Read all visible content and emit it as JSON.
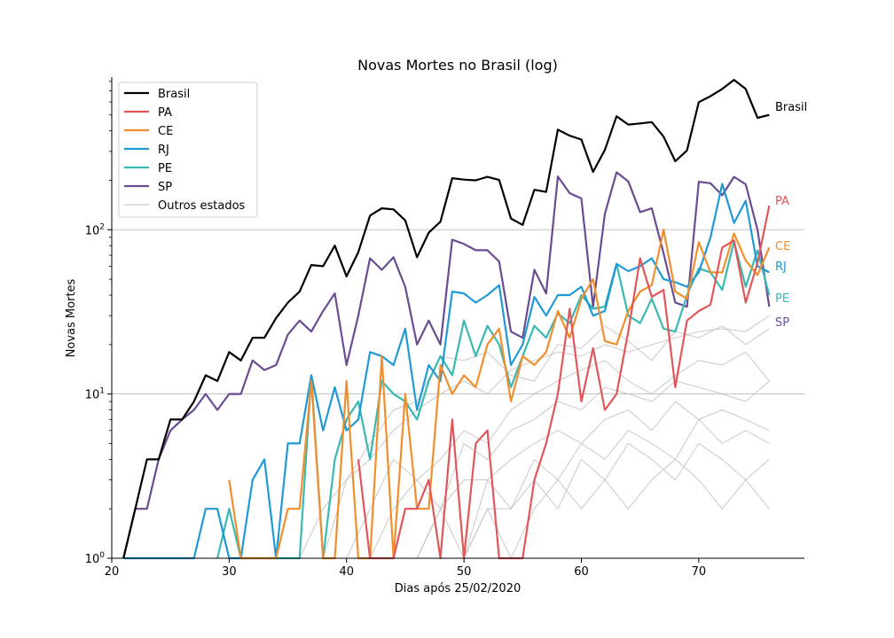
{
  "chart_data": {
    "type": "line",
    "title": "Novas Mortes no Brasil (log)",
    "xlabel": "Dias após 25/02/2020",
    "ylabel": "Novas Mortes",
    "yscale": "log",
    "xlim": [
      20,
      79
    ],
    "ylim": [
      1,
      850
    ],
    "xticks": [
      20,
      30,
      40,
      50,
      60,
      70
    ],
    "yticks": [
      1,
      10,
      100
    ],
    "ytick_labels": [
      "10^0",
      "10^1",
      "10^2"
    ],
    "grid": "horizontal at major y ticks",
    "legend_placement": "top-left",
    "legend": [
      "Brasil",
      "PA",
      "CE",
      "RJ",
      "PE",
      "SP",
      "Outros estados"
    ],
    "series": [
      {
        "name": "Brasil",
        "color": "#000000",
        "end_label": "Brasil",
        "x": [
          21,
          22,
          23,
          24,
          25,
          26,
          27,
          28,
          29,
          30,
          31,
          32,
          33,
          34,
          35,
          36,
          37,
          38,
          39,
          40,
          41,
          42,
          43,
          44,
          45,
          46,
          47,
          48,
          49,
          50,
          51,
          52,
          53,
          54,
          55,
          56,
          57,
          58,
          59,
          60,
          61,
          62,
          63,
          64,
          65,
          66,
          67,
          68,
          69,
          70,
          71,
          72,
          73,
          74,
          75,
          76
        ],
        "values": [
          1,
          2,
          4,
          4,
          7,
          7,
          9,
          13,
          12,
          18,
          16,
          22,
          22,
          29,
          36,
          42,
          61,
          60,
          80,
          52,
          73,
          122,
          135,
          133,
          114,
          68,
          96,
          112,
          206,
          202,
          200,
          210,
          201,
          117,
          107,
          175,
          170,
          407,
          374,
          354,
          225,
          306,
          491,
          437,
          444,
          452,
          369,
          261,
          304,
          598,
          651,
          720,
          818,
          720,
          480,
          500
        ]
      },
      {
        "name": "PA",
        "color": "#e15759",
        "end_label": "PA",
        "x": [
          41,
          42,
          43,
          44,
          45,
          46,
          47,
          48,
          49,
          50,
          51,
          52,
          53,
          54,
          55,
          56,
          57,
          58,
          59,
          60,
          61,
          62,
          63,
          64,
          65,
          66,
          67,
          68,
          69,
          70,
          71,
          72,
          73,
          74,
          75,
          76
        ],
        "values": [
          4,
          1,
          1,
          1,
          2,
          2,
          3,
          1,
          7,
          1,
          5,
          6,
          1,
          1,
          1,
          3,
          5,
          10,
          33,
          9,
          19,
          8,
          10,
          24,
          67,
          39,
          43,
          11,
          28,
          32,
          35,
          78,
          86,
          36,
          63,
          140
        ]
      },
      {
        "name": "CE",
        "color": "#f28e2b",
        "end_label": "CE",
        "x": [
          30,
          31,
          32,
          33,
          34,
          35,
          36,
          37,
          38,
          39,
          40,
          41,
          42,
          43,
          44,
          45,
          46,
          47,
          48,
          49,
          50,
          51,
          52,
          53,
          54,
          55,
          56,
          57,
          58,
          59,
          60,
          61,
          62,
          63,
          64,
          65,
          66,
          67,
          68,
          69,
          70,
          71,
          72,
          73,
          74,
          75,
          76
        ],
        "values": [
          3,
          1,
          1,
          1,
          1,
          2,
          2,
          12,
          1,
          1,
          12,
          1,
          1,
          17,
          1,
          10,
          2,
          2,
          15,
          10,
          13,
          11,
          20,
          25,
          9,
          17,
          15,
          18,
          32,
          22,
          38,
          50,
          21,
          20,
          32,
          42,
          46,
          100,
          42,
          38,
          84,
          55,
          55,
          95,
          65,
          53,
          78
        ]
      },
      {
        "name": "RJ",
        "color": "#1f9ad6",
        "end_label": "RJ",
        "x": [
          21,
          22,
          23,
          24,
          25,
          26,
          27,
          28,
          29,
          30,
          31,
          32,
          33,
          34,
          35,
          36,
          37,
          38,
          39,
          40,
          41,
          42,
          43,
          44,
          45,
          46,
          47,
          48,
          49,
          50,
          51,
          52,
          53,
          54,
          55,
          56,
          57,
          58,
          59,
          60,
          61,
          62,
          63,
          64,
          65,
          66,
          67,
          68,
          69,
          70,
          71,
          72,
          73,
          74,
          75,
          76
        ],
        "values": [
          1,
          1,
          1,
          1,
          1,
          1,
          1,
          2,
          2,
          1,
          1,
          3,
          4,
          1,
          5,
          5,
          13,
          6,
          11,
          6,
          7,
          18,
          17,
          15,
          25,
          8,
          15,
          12,
          42,
          41,
          36,
          40,
          46,
          15,
          20,
          39,
          30,
          40,
          40,
          45,
          30,
          32,
          62,
          56,
          60,
          67,
          50,
          48,
          45,
          55,
          90,
          190,
          110,
          150,
          60,
          55
        ]
      },
      {
        "name": "PE",
        "color": "#3ab8b2",
        "end_label": "PE",
        "x": [
          29,
          30,
          31,
          32,
          33,
          34,
          35,
          36,
          37,
          38,
          39,
          40,
          41,
          42,
          43,
          44,
          45,
          46,
          47,
          48,
          49,
          50,
          51,
          52,
          53,
          54,
          55,
          56,
          57,
          58,
          59,
          60,
          61,
          62,
          63,
          64,
          65,
          66,
          67,
          68,
          69,
          70,
          71,
          72,
          73,
          74,
          75,
          76
        ],
        "values": [
          1,
          2,
          1,
          1,
          1,
          1,
          1,
          1,
          13,
          1,
          4,
          7,
          9,
          4,
          12,
          10,
          9,
          7,
          12,
          17,
          13,
          28,
          17,
          26,
          20,
          11,
          17,
          26,
          22,
          31,
          27,
          40,
          33,
          34,
          62,
          30,
          27,
          38,
          25,
          24,
          40,
          58,
          55,
          43,
          85,
          45,
          75,
          40
        ]
      },
      {
        "name": "SP",
        "color": "#6a4c93",
        "end_label": "SP",
        "x": [
          21,
          22,
          23,
          24,
          25,
          26,
          27,
          28,
          29,
          30,
          31,
          32,
          33,
          34,
          35,
          36,
          37,
          38,
          39,
          40,
          41,
          42,
          43,
          44,
          45,
          46,
          47,
          48,
          49,
          50,
          51,
          52,
          53,
          54,
          55,
          56,
          57,
          58,
          59,
          60,
          61,
          62,
          63,
          64,
          65,
          66,
          67,
          68,
          69,
          70,
          71,
          72,
          73,
          74,
          75,
          76
        ],
        "values": [
          1,
          2,
          2,
          4,
          6,
          7,
          8,
          10,
          8,
          10,
          10,
          16,
          14,
          15,
          23,
          28,
          24,
          32,
          41,
          15,
          30,
          67,
          57,
          68,
          45,
          20,
          28,
          20,
          87,
          82,
          75,
          75,
          64,
          24,
          22,
          57,
          41,
          211,
          167,
          155,
          34,
          125,
          224,
          197,
          128,
          135,
          72,
          36,
          34,
          196,
          192,
          162,
          210,
          189,
          100,
          34
        ]
      }
    ],
    "others": {
      "name": "Outros estados",
      "color": "#bbbbbb",
      "series": [
        {
          "x": [
            36,
            38,
            40,
            42,
            44,
            46,
            48,
            50,
            52,
            54,
            56,
            58,
            60,
            62,
            64,
            66,
            68,
            70,
            72,
            74,
            76
          ],
          "values": [
            1,
            2,
            3,
            4,
            6,
            8,
            10,
            12,
            10,
            14,
            16,
            18,
            17,
            20,
            18,
            20,
            22,
            24,
            25,
            24,
            30
          ]
        },
        {
          "x": [
            38,
            40,
            42,
            44,
            46,
            48,
            50,
            52,
            54,
            56,
            58,
            60,
            62,
            64,
            66,
            68,
            70,
            72,
            74,
            76
          ],
          "values": [
            1,
            3,
            5,
            8,
            9,
            17,
            16,
            18,
            13,
            12,
            20,
            19,
            26,
            21,
            16,
            24,
            22,
            26,
            20,
            25
          ]
        },
        {
          "x": [
            40,
            42,
            44,
            46,
            48,
            50,
            52,
            54,
            56,
            58,
            60,
            62,
            64,
            66,
            68,
            70,
            72,
            74,
            76
          ],
          "values": [
            1,
            2,
            4,
            3,
            4,
            6,
            5,
            8,
            10,
            12,
            14,
            16,
            12,
            10,
            13,
            16,
            15,
            18,
            12
          ]
        },
        {
          "x": [
            42,
            44,
            46,
            48,
            50,
            52,
            54,
            56,
            58,
            60,
            62,
            64,
            66,
            68,
            70,
            72,
            74,
            76
          ],
          "values": [
            1,
            2,
            3,
            2,
            5,
            4,
            6,
            7,
            9,
            8,
            11,
            10,
            9,
            12,
            11,
            10,
            9,
            12
          ]
        },
        {
          "x": [
            44,
            46,
            48,
            50,
            52,
            54,
            56,
            58,
            60,
            62,
            64,
            66,
            68,
            70,
            72,
            74,
            76
          ],
          "values": [
            1,
            1,
            2,
            3,
            3,
            4,
            5,
            6,
            5,
            7,
            8,
            6,
            9,
            7,
            8,
            7,
            6
          ]
        },
        {
          "x": [
            46,
            48,
            50,
            52,
            54,
            56,
            58,
            60,
            62,
            64,
            66,
            68,
            70,
            72,
            74,
            76
          ],
          "values": [
            1,
            2,
            1,
            3,
            2,
            4,
            3,
            5,
            4,
            6,
            5,
            4,
            7,
            5,
            6,
            5
          ]
        },
        {
          "x": [
            48,
            50,
            52,
            54,
            56,
            58,
            60,
            62,
            64,
            66,
            68,
            70,
            72,
            74,
            76
          ],
          "values": [
            1,
            1,
            2,
            2,
            3,
            2,
            4,
            3,
            5,
            4,
            3,
            5,
            4,
            3,
            4
          ]
        },
        {
          "x": [
            50,
            52,
            54,
            56,
            58,
            60,
            62,
            64,
            66,
            68,
            70,
            72,
            74,
            76
          ],
          "values": [
            1,
            2,
            1,
            2,
            3,
            2,
            3,
            2,
            3,
            4,
            3,
            2,
            3,
            2
          ]
        }
      ]
    }
  }
}
